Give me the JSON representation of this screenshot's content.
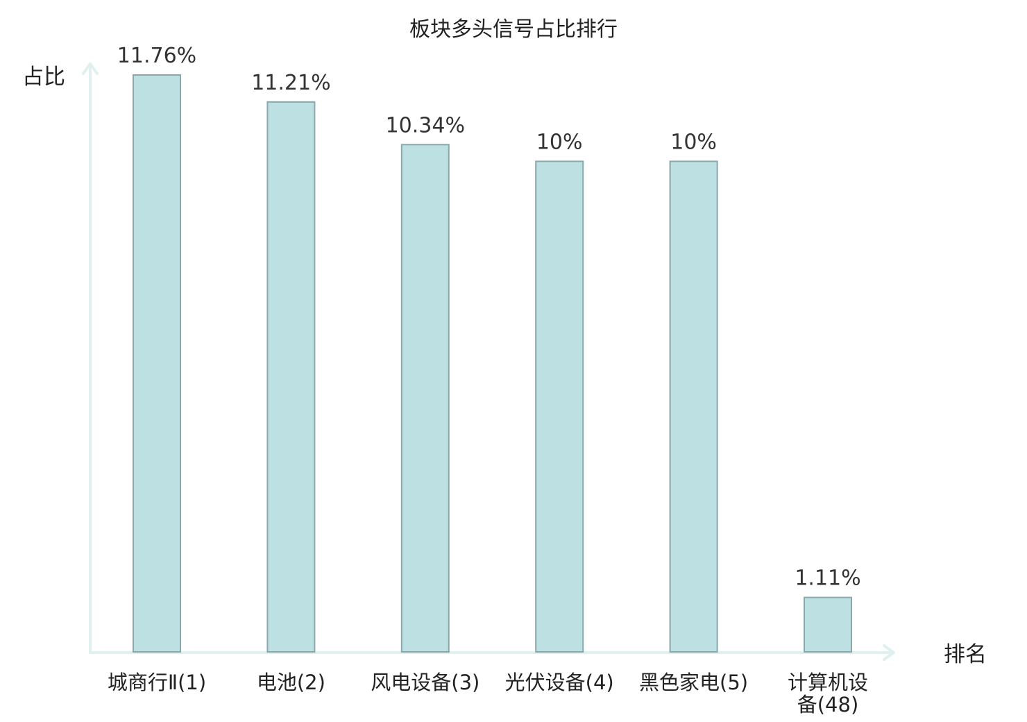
{
  "chart_data": {
    "type": "bar",
    "title": "板块多头信号占比排行",
    "ylabel": "占比",
    "xlabel": "排名",
    "categories": [
      "城商行Ⅱ(1)",
      "电池(2)",
      "风电设备(3)",
      "光伏设备(4)",
      "黑色家电(5)",
      "计算机设备(48)"
    ],
    "tick_lines": [
      [
        "城商行Ⅱ(1)"
      ],
      [
        "电池(2)"
      ],
      [
        "风电设备(3)"
      ],
      [
        "光伏设备(4)"
      ],
      [
        "黑色家电(5)"
      ],
      [
        "计算机设",
        "备(48)"
      ]
    ],
    "values": [
      11.76,
      11.21,
      10.34,
      10,
      10,
      1.11
    ],
    "data_labels": [
      "11.76%",
      "11.21%",
      "10.34%",
      "10%",
      "10%",
      "1.11%"
    ],
    "highlight_index": 5,
    "ylim": [
      0,
      11.76
    ],
    "grid": false,
    "legend": "none"
  },
  "colors": {
    "bar_fill": "#bde0e3",
    "bar_stroke": "#8aa8ab",
    "axis": "#dff0ee",
    "text": "#222222",
    "highlight": "#e8141b"
  }
}
